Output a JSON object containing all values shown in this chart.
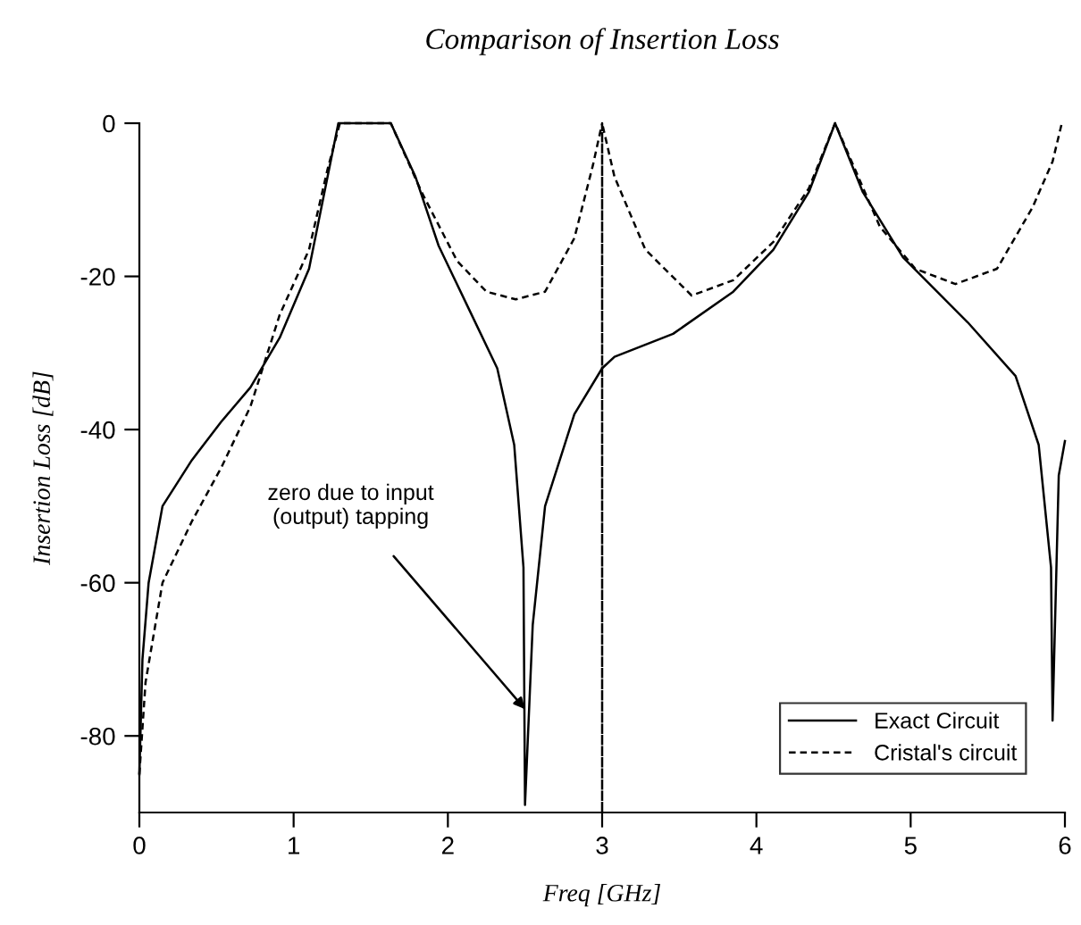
{
  "chart_data": {
    "type": "line",
    "title": "Comparison of Insertion Loss",
    "xlabel": "Freq [GHz]",
    "ylabel": "Insertion Loss [dB]",
    "xlim": [
      0,
      6
    ],
    "ylim": [
      -90,
      0
    ],
    "xticks": [
      0,
      1,
      2,
      3,
      4,
      5,
      6
    ],
    "yticks": [
      0,
      -20,
      -40,
      -60,
      -80
    ],
    "grid": false,
    "legend": "bottom right",
    "series": [
      {
        "name": "Exact Circuit",
        "color": "#000000",
        "line_style": "solid",
        "x": [
          0,
          0.02,
          0.06,
          0.15,
          0.34,
          0.53,
          0.72,
          0.91,
          1.1,
          1.22,
          1.29,
          1.4,
          1.5,
          1.63,
          1.79,
          1.94,
          2.13,
          2.32,
          2.43,
          2.49,
          2.5,
          2.55,
          2.63,
          2.82,
          3.0,
          3.08,
          3.46,
          3.85,
          4.11,
          4.34,
          4.51,
          4.69,
          4.95,
          5.37,
          5.68,
          5.83,
          5.91,
          5.92,
          5.96,
          6.0
        ],
        "values": [
          -85,
          -70,
          -60,
          -50,
          -44,
          -39,
          -34.5,
          -28,
          -19,
          -7,
          0,
          0,
          0,
          0,
          -7,
          -16,
          -24,
          -32,
          -42,
          -58,
          -89,
          -65.5,
          -50,
          -38,
          -32,
          -30.5,
          -27.5,
          -22,
          -16.5,
          -9,
          0,
          -9,
          -17.5,
          -26,
          -33,
          -42,
          -58,
          -78,
          -46,
          -41.5
        ]
      },
      {
        "name": "Cristal's circuit",
        "color": "#000000",
        "line_style": "dashed",
        "x": [
          0,
          0.04,
          0.15,
          0.34,
          0.53,
          0.72,
          0.91,
          1.1,
          1.22,
          1.3,
          1.4,
          1.5,
          1.63,
          1.83,
          2.06,
          2.25,
          2.44,
          2.63,
          2.82,
          2.94,
          3.0,
          3.0,
          3.0,
          3.08,
          3.28,
          3.58,
          3.85,
          4.11,
          4.34,
          4.51,
          4.8,
          5.03,
          5.29,
          5.56,
          5.79,
          5.92,
          5.98
        ],
        "values": [
          -85,
          -73,
          -60,
          -52,
          -45,
          -37,
          -25,
          -16.5,
          -6,
          0,
          0,
          0,
          0,
          -9,
          -18,
          -22,
          -23,
          -22,
          -15,
          -5.5,
          0,
          -90,
          0,
          -7,
          -16.5,
          -22.5,
          -20.5,
          -15.5,
          -8.5,
          0,
          -13.5,
          -19,
          -21,
          -19,
          -11,
          -5,
          0
        ]
      }
    ],
    "annotations": [
      {
        "text": "zero due to input\n(output) tapping",
        "x": 2.5,
        "y": -76.5
      }
    ]
  }
}
